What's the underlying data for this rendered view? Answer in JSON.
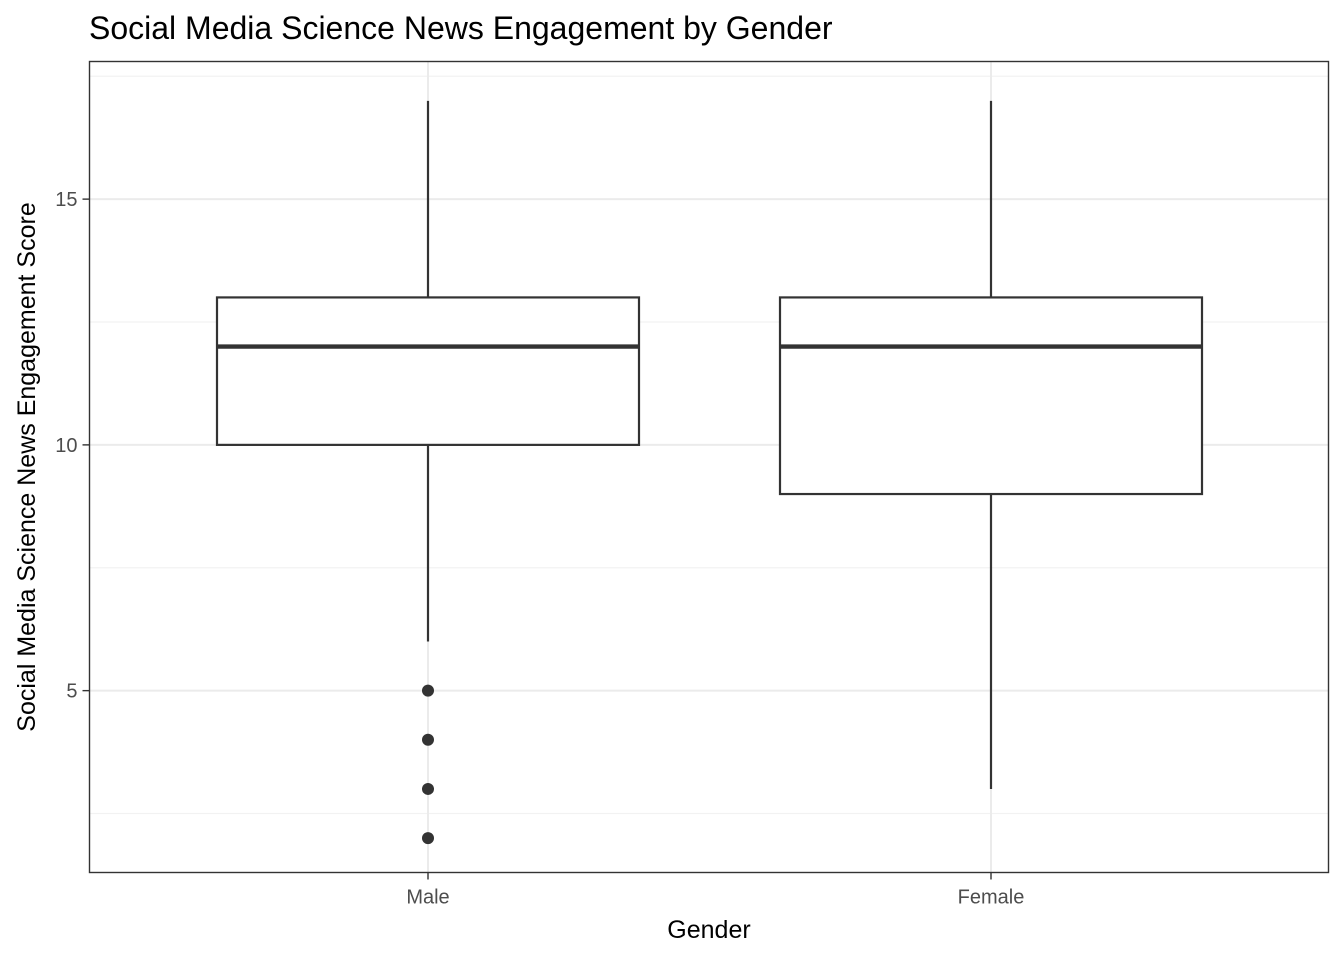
{
  "chart_data": {
    "type": "boxplot",
    "title": "Social Media Science News Engagement by Gender",
    "xlabel": "Gender",
    "ylabel": "Social Media Science News Engagement Score",
    "categories": [
      "Male",
      "Female"
    ],
    "ylim": [
      1.3,
      17.8
    ],
    "yticks": [
      5,
      10,
      15
    ],
    "grid": true,
    "legend": "none",
    "boxes": [
      {
        "category": "Male",
        "whisker_low": 6,
        "q1": 10,
        "median": 12,
        "q3": 13,
        "whisker_high": 17,
        "outliers": [
          5,
          4,
          3,
          2
        ]
      },
      {
        "category": "Female",
        "whisker_low": 3,
        "q1": 9,
        "median": 12,
        "q3": 13,
        "whisker_high": 17,
        "outliers": []
      }
    ],
    "colors": {
      "box_line": "#333333",
      "box_fill": "#ffffff",
      "grid_major": "#ebebeb",
      "grid_minor": "#f2f2f2",
      "panel_border": "#333333",
      "outlier": "#333333"
    }
  }
}
